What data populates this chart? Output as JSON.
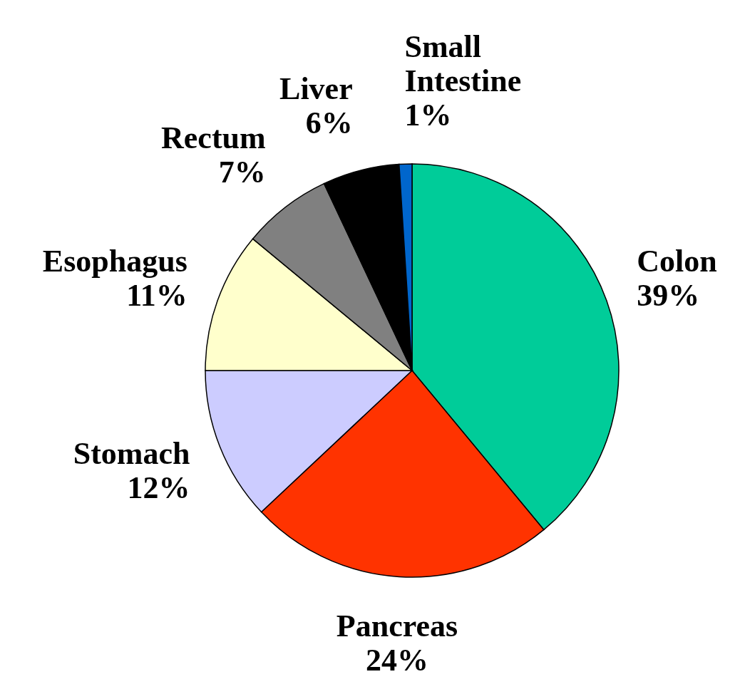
{
  "chart_data": {
    "type": "pie",
    "categories": [
      "Colon",
      "Pancreas",
      "Stomach",
      "Esophagus",
      "Rectum",
      "Liver",
      "Small Intestine"
    ],
    "values": [
      39,
      24,
      12,
      11,
      7,
      6,
      1
    ],
    "colors": [
      "#00cc99",
      "#ff3300",
      "#ccccff",
      "#ffffcc",
      "#808080",
      "#000000",
      "#0066cc"
    ],
    "value_labels": [
      "39%",
      "24%",
      "12%",
      "11%",
      "7%",
      "6%",
      "1%"
    ]
  }
}
